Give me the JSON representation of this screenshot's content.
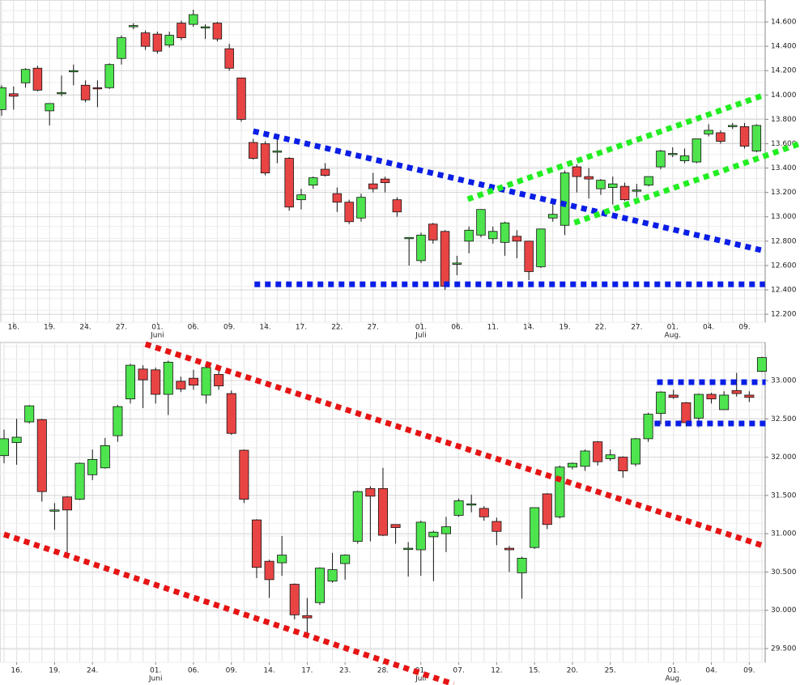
{
  "chart_data": [
    {
      "type": "candlestick",
      "categories": [
        null,
        "16.",
        null,
        null,
        "19.",
        null,
        null,
        "24.",
        null,
        null,
        "27.",
        null,
        null,
        "01.",
        null,
        null,
        "06.",
        null,
        null,
        "09.",
        null,
        null,
        "14.",
        null,
        null,
        "17.",
        null,
        null,
        "22.",
        null,
        null,
        "27.",
        null,
        null,
        null,
        "01.",
        null,
        null,
        "06.",
        null,
        null,
        "11.",
        null,
        null,
        "14.",
        null,
        null,
        "19.",
        null,
        null,
        "22.",
        null,
        null,
        "27.",
        null,
        null,
        "01.",
        null,
        null,
        "04.",
        null,
        null,
        "09.",
        null
      ],
      "month_labels": [
        null,
        null,
        null,
        null,
        null,
        null,
        null,
        null,
        null,
        null,
        null,
        null,
        null,
        "Juni",
        null,
        null,
        null,
        null,
        null,
        null,
        null,
        null,
        null,
        null,
        null,
        null,
        null,
        null,
        null,
        null,
        null,
        null,
        null,
        null,
        null,
        "Juli",
        null,
        null,
        null,
        null,
        null,
        null,
        null,
        null,
        null,
        null,
        null,
        null,
        null,
        null,
        null,
        null,
        null,
        null,
        null,
        null,
        "Aug.",
        null,
        null,
        null,
        null,
        null,
        null,
        null
      ],
      "open": [
        13880,
        14010,
        14100,
        14220,
        13870,
        14010,
        14200,
        14080,
        14060,
        14060,
        14300,
        14570,
        14510,
        14500,
        14410,
        14590,
        14580,
        14560,
        14590,
        14380,
        14140,
        13610,
        13600,
        13540,
        13480,
        13140,
        13260,
        13390,
        13190,
        13120,
        12990,
        13270,
        13310,
        13140,
        12830,
        12640,
        12940,
        12880,
        12620,
        12800,
        12850,
        12820,
        12790,
        12840,
        12800,
        12590,
        12990,
        12930,
        13410,
        13330,
        13230,
        13240,
        13250,
        13220,
        13260,
        13410,
        13520,
        13460,
        13450,
        13680,
        13690,
        13750,
        13740,
        13540
      ],
      "high": [
        14080,
        14070,
        14220,
        14240,
        13930,
        14160,
        14250,
        14120,
        14120,
        14260,
        14490,
        14590,
        14530,
        14520,
        14520,
        14610,
        14700,
        14580,
        14600,
        14420,
        14140,
        13640,
        13620,
        13650,
        13490,
        13230,
        13330,
        13440,
        13240,
        13140,
        13190,
        13360,
        13330,
        13160,
        12830,
        12870,
        12950,
        12890,
        12680,
        12920,
        13060,
        12920,
        12960,
        12890,
        12800,
        12900,
        13110,
        13380,
        13430,
        13400,
        13310,
        13330,
        13280,
        13270,
        13330,
        13550,
        13570,
        13560,
        13640,
        13760,
        13710,
        13770,
        13770,
        13760
      ],
      "low": [
        13830,
        13880,
        14060,
        14030,
        13750,
        13990,
        14080,
        13940,
        13900,
        14050,
        14250,
        14540,
        14370,
        14340,
        14390,
        14450,
        14560,
        14460,
        14440,
        14200,
        13780,
        13470,
        13340,
        13440,
        13050,
        13060,
        13230,
        13330,
        13040,
        12940,
        12960,
        13200,
        13200,
        13000,
        12600,
        12620,
        12780,
        12400,
        12520,
        12700,
        12830,
        12780,
        12680,
        12660,
        12480,
        12580,
        12960,
        12850,
        13200,
        13150,
        13180,
        13100,
        13130,
        13160,
        13250,
        13390,
        13490,
        13440,
        13440,
        13660,
        13600,
        13720,
        13560,
        13530
      ],
      "close": [
        14060,
        13990,
        14210,
        14040,
        13930,
        14020,
        14200,
        13960,
        14050,
        14250,
        14470,
        14570,
        14400,
        14360,
        14490,
        14470,
        14660,
        14560,
        14460,
        14220,
        13800,
        13480,
        13360,
        13540,
        13080,
        13180,
        13320,
        13340,
        13120,
        12960,
        13160,
        13230,
        13280,
        13040,
        12830,
        12850,
        12810,
        12430,
        12620,
        12890,
        13060,
        12880,
        12950,
        12800,
        12550,
        12900,
        13020,
        13360,
        13330,
        13310,
        13300,
        13270,
        13140,
        13220,
        13330,
        13540,
        13520,
        13500,
        13640,
        13710,
        13620,
        13750,
        13580,
        13750
      ],
      "up_color": "#4ee44e",
      "down_color": "#e84444",
      "xlim": [
        -0.135,
        63.72
      ],
      "ylim": [
        12134,
        14780
      ],
      "yticks": [
        {
          "value": 12200,
          "label": "12.200"
        },
        {
          "value": 12400,
          "label": "12.400"
        },
        {
          "value": 12600,
          "label": "12.600"
        },
        {
          "value": 12800,
          "label": "12.800"
        },
        {
          "value": 13000,
          "label": "13.000"
        },
        {
          "value": 13200,
          "label": "13.200"
        },
        {
          "value": 13400,
          "label": "13.400"
        },
        {
          "value": 13600,
          "label": "13.600"
        },
        {
          "value": 13800,
          "label": "13.800"
        },
        {
          "value": 14000,
          "label": "14.000"
        },
        {
          "value": 14200,
          "label": "14.200"
        },
        {
          "value": 14400,
          "label": "14.400"
        },
        {
          "value": 14600,
          "label": "14.600"
        }
      ],
      "grid": true,
      "trendlines": [
        {
          "color": "#0a1ee6",
          "x": [
            21,
            63.7
          ],
          "y": [
            13703,
            12719
          ]
        },
        {
          "color": "#0a1ee6",
          "x": [
            21.1,
            63.7
          ],
          "y": [
            12446,
            12446
          ]
        },
        {
          "color": "#22ee22",
          "x": [
            38.9,
            63.7
          ],
          "y": [
            13144,
            14002
          ]
        },
        {
          "color": "#22ee22",
          "x": [
            47.8,
            66.6
          ],
          "y": [
            12951,
            13600
          ]
        }
      ]
    },
    {
      "type": "candlestick",
      "categories": [
        null,
        "16.",
        null,
        null,
        "19.",
        null,
        null,
        "24.",
        null,
        null,
        null,
        null,
        "01.",
        null,
        null,
        "06.",
        null,
        null,
        "09.",
        null,
        null,
        "14.",
        null,
        null,
        "17.",
        null,
        null,
        "23.",
        null,
        null,
        "28.",
        null,
        null,
        "01.",
        null,
        null,
        "07.",
        null,
        null,
        "12.",
        null,
        null,
        "15.",
        null,
        null,
        "20.",
        null,
        null,
        "25.",
        null,
        null,
        null,
        null,
        "01.",
        null,
        null,
        "04.",
        null,
        null,
        "09.",
        null
      ],
      "month_labels": [
        null,
        null,
        null,
        null,
        null,
        null,
        null,
        null,
        null,
        null,
        null,
        null,
        "Juni",
        null,
        null,
        null,
        null,
        null,
        null,
        null,
        null,
        null,
        null,
        null,
        null,
        null,
        null,
        null,
        null,
        null,
        null,
        null,
        null,
        "Juli",
        null,
        null,
        null,
        null,
        null,
        null,
        null,
        null,
        null,
        null,
        null,
        null,
        null,
        null,
        null,
        null,
        null,
        null,
        null,
        "Aug.",
        null,
        null,
        null,
        null,
        null,
        null,
        null
      ],
      "open": [
        32020,
        32190,
        32460,
        32490,
        31310,
        31480,
        31450,
        31770,
        31860,
        32280,
        32760,
        33150,
        33140,
        32820,
        32990,
        33030,
        32810,
        33080,
        32830,
        32090,
        31180,
        30640,
        30620,
        30340,
        29930,
        30100,
        30380,
        30610,
        30900,
        31590,
        31590,
        31120,
        30810,
        30790,
        30960,
        31000,
        31240,
        31390,
        31330,
        31160,
        30810,
        30490,
        30820,
        31520,
        31220,
        31870,
        31880,
        32200,
        31980,
        32000,
        31910,
        32240,
        32570,
        32810,
        32710,
        32510,
        32820,
        32620,
        32870,
        32810,
        33120
      ],
      "high": [
        32360,
        32500,
        32680,
        32500,
        31400,
        31490,
        31930,
        32100,
        32250,
        32680,
        33220,
        33200,
        33170,
        33260,
        33050,
        33140,
        33180,
        33130,
        32870,
        32100,
        31190,
        30660,
        30970,
        30350,
        30160,
        30560,
        30750,
        30730,
        31560,
        31620,
        31860,
        31120,
        30890,
        31170,
        31040,
        31220,
        31460,
        31510,
        31360,
        31210,
        30840,
        30700,
        31340,
        31530,
        31890,
        31930,
        32100,
        32210,
        32100,
        32010,
        32250,
        32580,
        32860,
        32880,
        32720,
        32830,
        32840,
        32860,
        33100,
        32860,
        33310
      ],
      "low": [
        31920,
        31900,
        32440,
        31420,
        31050,
        30700,
        31440,
        31700,
        31850,
        32200,
        32700,
        32640,
        32700,
        32550,
        32850,
        32880,
        32700,
        32880,
        32290,
        31400,
        30420,
        30160,
        30450,
        29880,
        29650,
        30070,
        30360,
        30400,
        30870,
        30900,
        30970,
        30870,
        30440,
        30450,
        30380,
        30760,
        31220,
        31280,
        31170,
        30850,
        30500,
        30150,
        30800,
        31060,
        31200,
        31840,
        31820,
        31890,
        31950,
        31730,
        31880,
        32200,
        32430,
        32760,
        32400,
        32390,
        32700,
        32620,
        32790,
        32720,
        33110
      ],
      "close": [
        32240,
        32260,
        32670,
        31550,
        31310,
        31310,
        31920,
        31970,
        32150,
        32660,
        33200,
        33010,
        32820,
        33240,
        32890,
        32940,
        33170,
        32930,
        32310,
        31450,
        30560,
        30400,
        30720,
        29940,
        29900,
        30550,
        30530,
        30720,
        31550,
        31490,
        30980,
        31080,
        30810,
        31150,
        31020,
        31090,
        31430,
        31390,
        31220,
        31030,
        30790,
        30680,
        31340,
        31120,
        31870,
        31920,
        32080,
        31940,
        32030,
        31820,
        32240,
        32560,
        32850,
        32780,
        32450,
        32820,
        32760,
        32810,
        32830,
        32780,
        33300
      ],
      "up_color": "#4ee44e",
      "down_color": "#e84444",
      "xlim": [
        -0.32,
        60.26
      ],
      "ylim": [
        29320,
        33497
      ],
      "yticks": [
        {
          "value": 29500,
          "label": "29.500"
        },
        {
          "value": 30000,
          "label": "30.000"
        },
        {
          "value": 30500,
          "label": "30.500"
        },
        {
          "value": 31000,
          "label": "31.000"
        },
        {
          "value": 31500,
          "label": "31.500"
        },
        {
          "value": 32000,
          "label": "32.000"
        },
        {
          "value": 32500,
          "label": "32.500"
        },
        {
          "value": 33000,
          "label": "33.000"
        }
      ],
      "grid": true,
      "trendlines": [
        {
          "color": "#e61414",
          "x": [
            11.2,
            60.3
          ],
          "y": [
            33476,
            30832
          ]
        },
        {
          "color": "#e61414",
          "x": [
            0,
            35.6
          ],
          "y": [
            30991,
            29035
          ]
        },
        {
          "color": "#0a1ee6",
          "x": [
            51.7,
            60.3
          ],
          "y": [
            32979,
            32979
          ]
        },
        {
          "color": "#0a1ee6",
          "x": [
            51.5,
            60.3
          ],
          "y": [
            32440,
            32440
          ]
        }
      ]
    }
  ]
}
